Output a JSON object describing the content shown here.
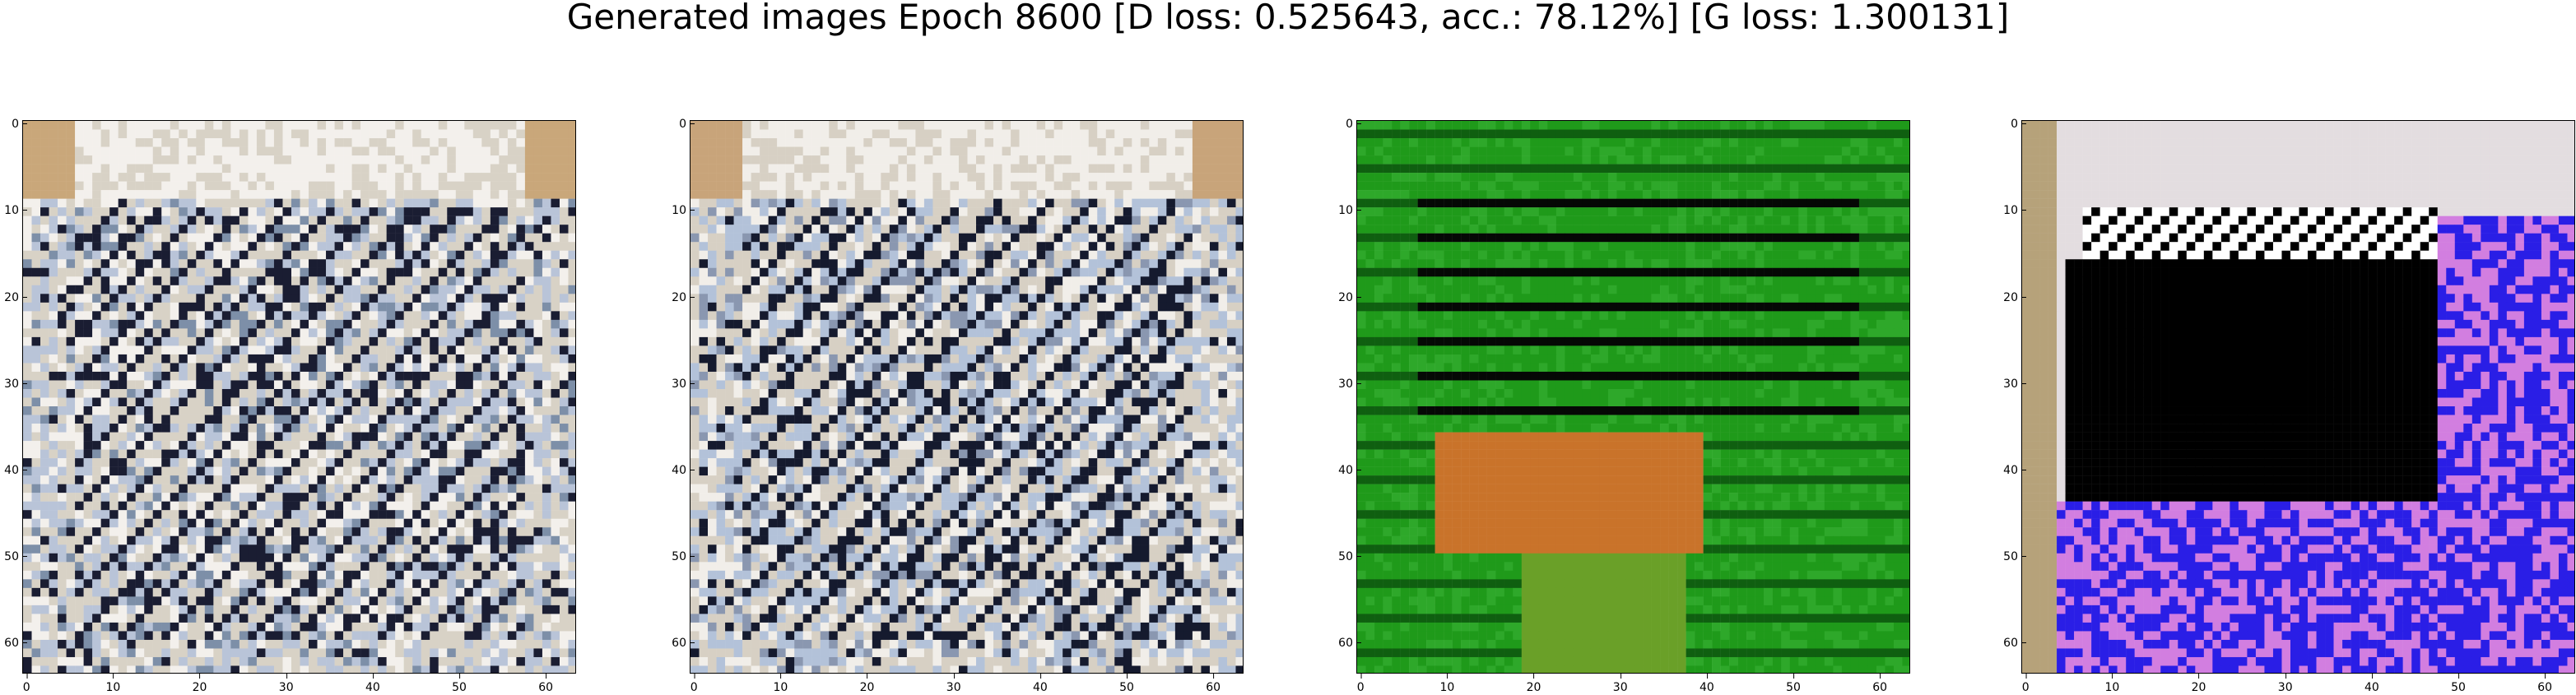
{
  "suptitle": "Generated images Epoch 8600 [D loss: 0.525643, acc.: 78.12%] [G loss: 1.300131]",
  "ticks": [
    "0",
    "10",
    "20",
    "30",
    "40",
    "50",
    "60"
  ],
  "tick_values": [
    0,
    10,
    20,
    30,
    40,
    50,
    60
  ],
  "image_size": 64,
  "panels": [
    {
      "name": "generated-image-1",
      "palette": [
        "#d8d2c6",
        "#b9c4d8",
        "#f3f0ec",
        "#1a1d32",
        "#7d8fa8",
        "#c9a77a"
      ]
    },
    {
      "name": "generated-image-2",
      "palette": [
        "#d7d0c4",
        "#b3c2d9",
        "#f1eee9",
        "#151a2e",
        "#8a97b0",
        "#c8a47a"
      ]
    },
    {
      "name": "generated-image-3",
      "palette": [
        "#1f9a1a",
        "#0f5f10",
        "#2ea82a",
        "#050805",
        "#c9732a",
        "#6aa028"
      ]
    },
    {
      "name": "generated-image-4",
      "palette": [
        "#e3dde0",
        "#000000",
        "#2a1ee6",
        "#d27ee0",
        "#ffffff",
        "#b6a27a"
      ]
    }
  ]
}
